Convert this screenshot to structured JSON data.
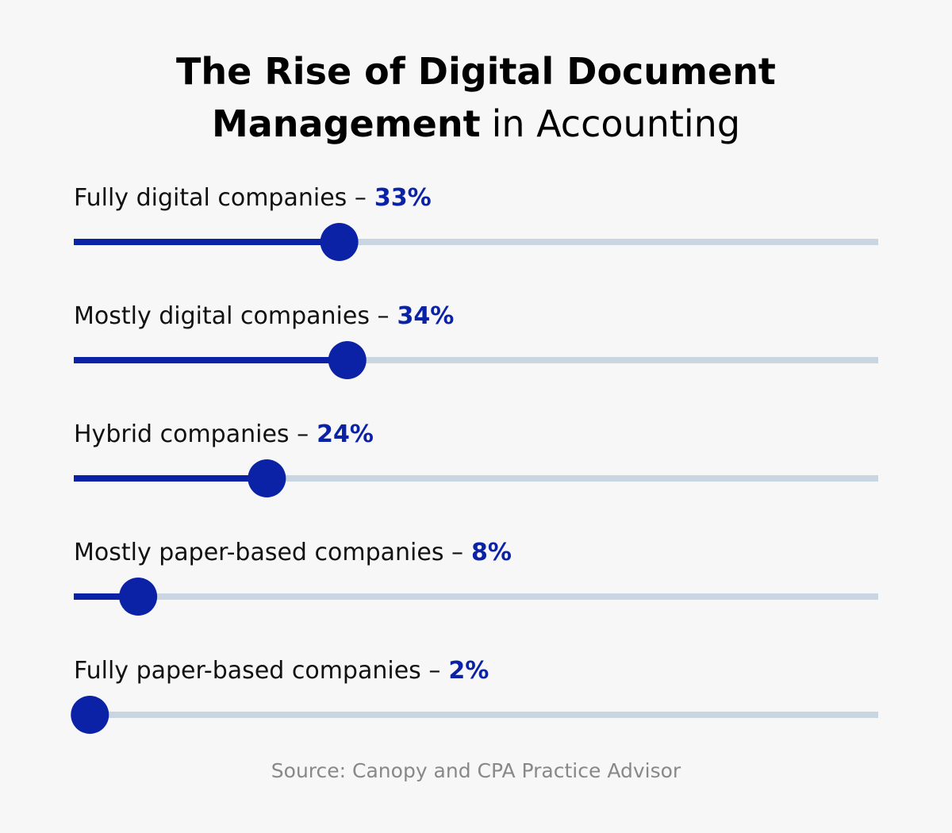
{
  "chart_data": {
    "type": "slider",
    "title": [
      "The Rise of Digital Document",
      "Management",
      "in Accounting"
    ],
    "categories": [
      "Fully digital companies –",
      "Mostly digital companies –",
      "Hybrid companies –",
      "Mostly paper-based companies –",
      "Fully paper-based companies –"
    ],
    "values": [
      33,
      34,
      24,
      8,
      2
    ],
    "value_labels": [
      "33%",
      "34%",
      "24%",
      "8%",
      "2%"
    ],
    "xlim": [
      0,
      100
    ],
    "color": "#0b22a6",
    "track_color": "#c9d5e0",
    "source": "Source:  Canopy and CPA Practice Advisor"
  }
}
